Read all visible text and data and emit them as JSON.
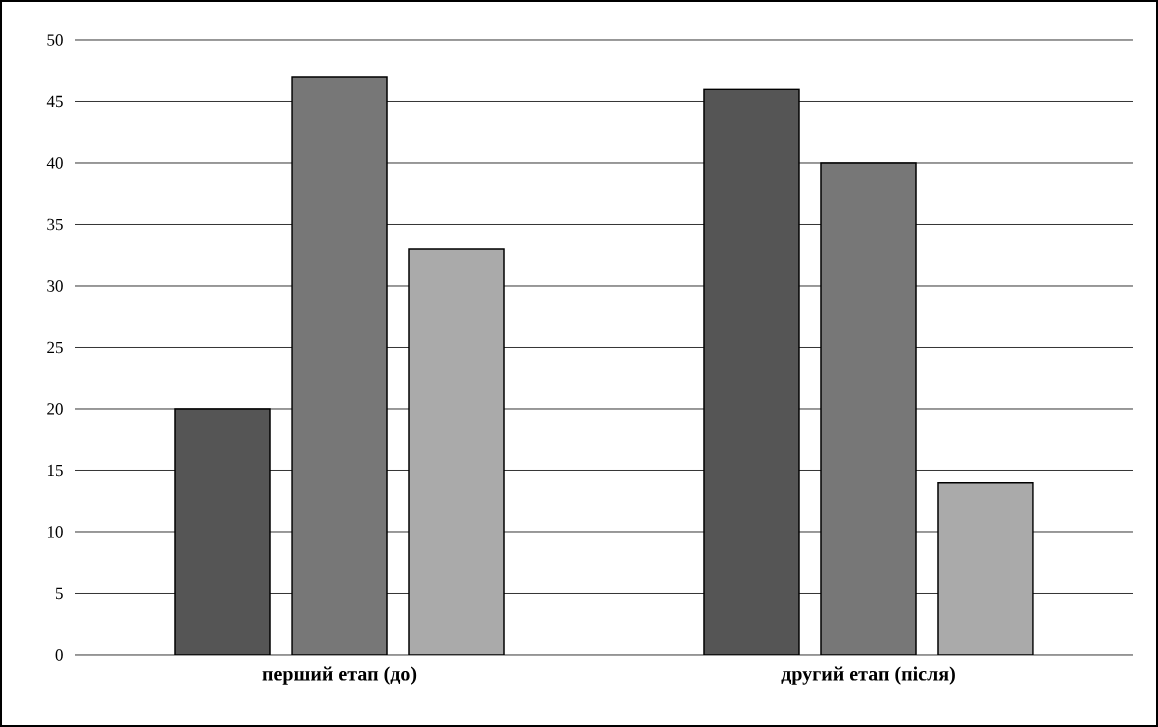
{
  "chart_data": {
    "type": "bar",
    "categories": [
      "перший етап (до)",
      "другий етап (після)"
    ],
    "series": [
      {
        "color": "#555555",
        "values": [
          20,
          46
        ]
      },
      {
        "color": "#777777",
        "values": [
          47,
          40
        ]
      },
      {
        "color": "#aaaaaa",
        "values": [
          33,
          14
        ]
      }
    ],
    "ylim": [
      0,
      50
    ],
    "yticks": [
      0,
      5,
      10,
      15,
      20,
      25,
      30,
      35,
      40,
      45,
      50
    ],
    "grid": "y"
  }
}
